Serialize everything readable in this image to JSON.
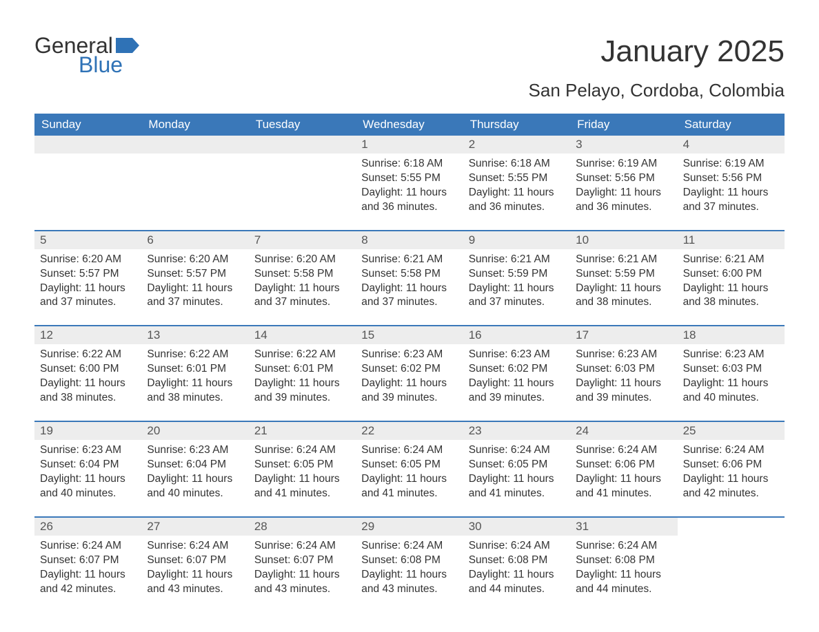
{
  "logo": {
    "word1": "General",
    "word2": "Blue",
    "flag_color": "#2f72b6"
  },
  "title": "January 2025",
  "location": "San Pelayo, Cordoba, Colombia",
  "colors": {
    "header_bg": "#3a78b9",
    "header_text": "#ffffff",
    "date_bg": "#ededed",
    "date_text": "#555555",
    "body_text": "#333333",
    "accent": "#2f72b6",
    "page_bg": "#ffffff"
  },
  "day_headers": [
    "Sunday",
    "Monday",
    "Tuesday",
    "Wednesday",
    "Thursday",
    "Friday",
    "Saturday"
  ],
  "weeks": [
    [
      null,
      null,
      null,
      {
        "date": "1",
        "sunrise": "6:18 AM",
        "sunset": "5:55 PM",
        "daylight": "11 hours and 36 minutes."
      },
      {
        "date": "2",
        "sunrise": "6:18 AM",
        "sunset": "5:55 PM",
        "daylight": "11 hours and 36 minutes."
      },
      {
        "date": "3",
        "sunrise": "6:19 AM",
        "sunset": "5:56 PM",
        "daylight": "11 hours and 36 minutes."
      },
      {
        "date": "4",
        "sunrise": "6:19 AM",
        "sunset": "5:56 PM",
        "daylight": "11 hours and 37 minutes."
      }
    ],
    [
      {
        "date": "5",
        "sunrise": "6:20 AM",
        "sunset": "5:57 PM",
        "daylight": "11 hours and 37 minutes."
      },
      {
        "date": "6",
        "sunrise": "6:20 AM",
        "sunset": "5:57 PM",
        "daylight": "11 hours and 37 minutes."
      },
      {
        "date": "7",
        "sunrise": "6:20 AM",
        "sunset": "5:58 PM",
        "daylight": "11 hours and 37 minutes."
      },
      {
        "date": "8",
        "sunrise": "6:21 AM",
        "sunset": "5:58 PM",
        "daylight": "11 hours and 37 minutes."
      },
      {
        "date": "9",
        "sunrise": "6:21 AM",
        "sunset": "5:59 PM",
        "daylight": "11 hours and 37 minutes."
      },
      {
        "date": "10",
        "sunrise": "6:21 AM",
        "sunset": "5:59 PM",
        "daylight": "11 hours and 38 minutes."
      },
      {
        "date": "11",
        "sunrise": "6:21 AM",
        "sunset": "6:00 PM",
        "daylight": "11 hours and 38 minutes."
      }
    ],
    [
      {
        "date": "12",
        "sunrise": "6:22 AM",
        "sunset": "6:00 PM",
        "daylight": "11 hours and 38 minutes."
      },
      {
        "date": "13",
        "sunrise": "6:22 AM",
        "sunset": "6:01 PM",
        "daylight": "11 hours and 38 minutes."
      },
      {
        "date": "14",
        "sunrise": "6:22 AM",
        "sunset": "6:01 PM",
        "daylight": "11 hours and 39 minutes."
      },
      {
        "date": "15",
        "sunrise": "6:23 AM",
        "sunset": "6:02 PM",
        "daylight": "11 hours and 39 minutes."
      },
      {
        "date": "16",
        "sunrise": "6:23 AM",
        "sunset": "6:02 PM",
        "daylight": "11 hours and 39 minutes."
      },
      {
        "date": "17",
        "sunrise": "6:23 AM",
        "sunset": "6:03 PM",
        "daylight": "11 hours and 39 minutes."
      },
      {
        "date": "18",
        "sunrise": "6:23 AM",
        "sunset": "6:03 PM",
        "daylight": "11 hours and 40 minutes."
      }
    ],
    [
      {
        "date": "19",
        "sunrise": "6:23 AM",
        "sunset": "6:04 PM",
        "daylight": "11 hours and 40 minutes."
      },
      {
        "date": "20",
        "sunrise": "6:23 AM",
        "sunset": "6:04 PM",
        "daylight": "11 hours and 40 minutes."
      },
      {
        "date": "21",
        "sunrise": "6:24 AM",
        "sunset": "6:05 PM",
        "daylight": "11 hours and 41 minutes."
      },
      {
        "date": "22",
        "sunrise": "6:24 AM",
        "sunset": "6:05 PM",
        "daylight": "11 hours and 41 minutes."
      },
      {
        "date": "23",
        "sunrise": "6:24 AM",
        "sunset": "6:05 PM",
        "daylight": "11 hours and 41 minutes."
      },
      {
        "date": "24",
        "sunrise": "6:24 AM",
        "sunset": "6:06 PM",
        "daylight": "11 hours and 41 minutes."
      },
      {
        "date": "25",
        "sunrise": "6:24 AM",
        "sunset": "6:06 PM",
        "daylight": "11 hours and 42 minutes."
      }
    ],
    [
      {
        "date": "26",
        "sunrise": "6:24 AM",
        "sunset": "6:07 PM",
        "daylight": "11 hours and 42 minutes."
      },
      {
        "date": "27",
        "sunrise": "6:24 AM",
        "sunset": "6:07 PM",
        "daylight": "11 hours and 43 minutes."
      },
      {
        "date": "28",
        "sunrise": "6:24 AM",
        "sunset": "6:07 PM",
        "daylight": "11 hours and 43 minutes."
      },
      {
        "date": "29",
        "sunrise": "6:24 AM",
        "sunset": "6:08 PM",
        "daylight": "11 hours and 43 minutes."
      },
      {
        "date": "30",
        "sunrise": "6:24 AM",
        "sunset": "6:08 PM",
        "daylight": "11 hours and 44 minutes."
      },
      {
        "date": "31",
        "sunrise": "6:24 AM",
        "sunset": "6:08 PM",
        "daylight": "11 hours and 44 minutes."
      },
      null
    ]
  ],
  "labels": {
    "sunrise": "Sunrise:",
    "sunset": "Sunset:",
    "daylight": "Daylight:"
  }
}
